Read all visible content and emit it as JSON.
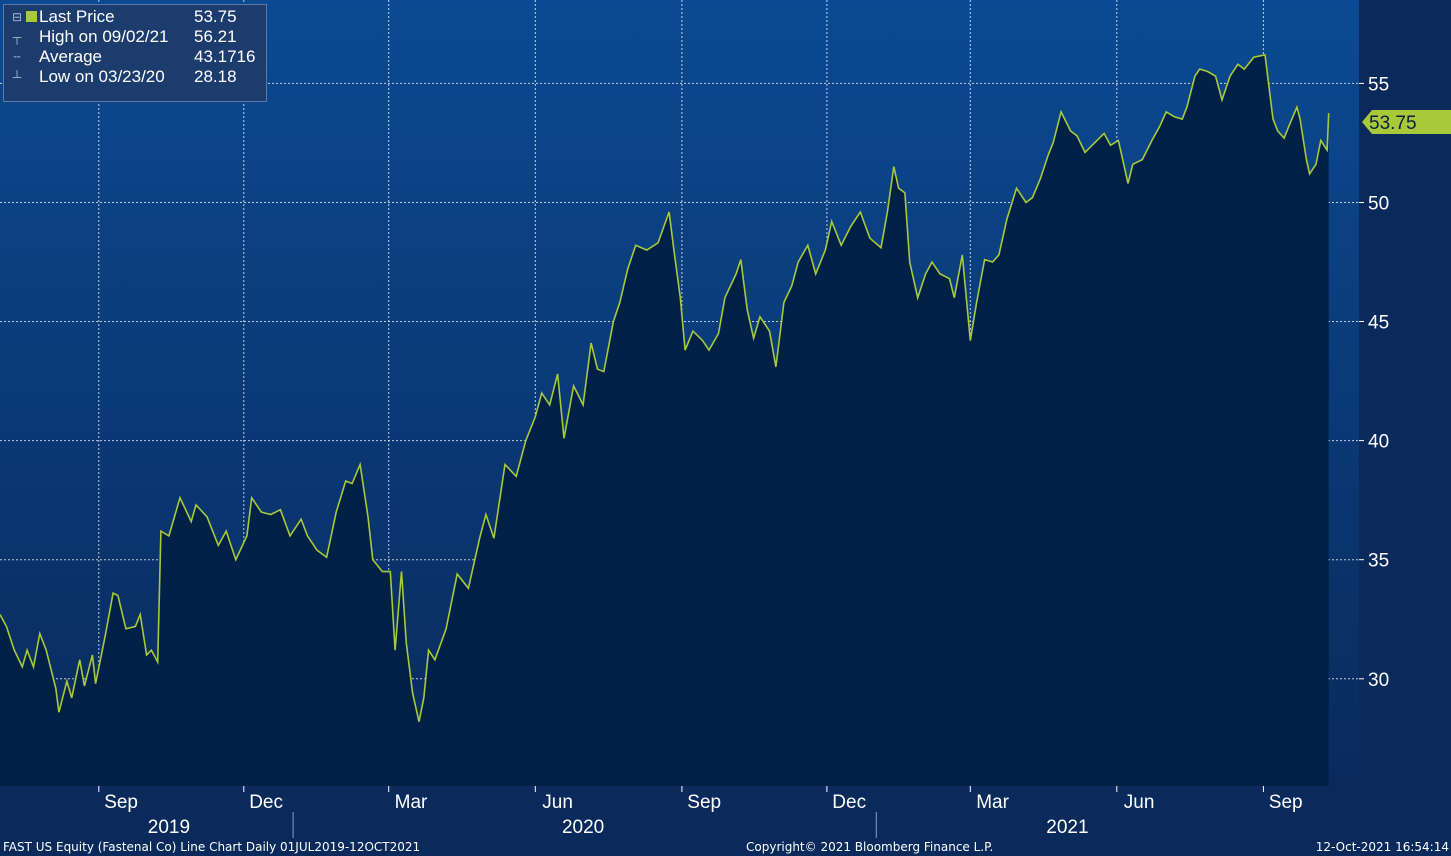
{
  "legend": {
    "last_label": "Last Price",
    "last_value": "53.75",
    "high_label": "High on 09/02/21",
    "high_value": "56.21",
    "avg_label": "Average",
    "avg_value": "43.1716",
    "low_label": "Low on 03/23/20",
    "low_value": "28.18"
  },
  "last_price_tag": "53.75",
  "footer": {
    "left": "FAST US Equity (Fastenal Co) Line Chart  Daily 01JUL2019-12OCT2021",
    "center": "Copyright© 2021 Bloomberg Finance L.P.",
    "right": "12-Oct-2021 16:54:14"
  },
  "colors": {
    "line": "#a7c93a",
    "fill": "#022147",
    "bg_top": "#0b4a92",
    "bg_bottom": "#0a2a5c"
  },
  "chart_data": {
    "type": "area",
    "ylim": [
      25.5,
      58.5
    ],
    "y_ticks": [
      30,
      35,
      40,
      45,
      50,
      55
    ],
    "x_months": [
      "Sep",
      "Dec",
      "Mar",
      "Jun",
      "Sep",
      "Dec",
      "Mar",
      "Jun",
      "Sep"
    ],
    "x_years": [
      "2019",
      "2020",
      "2021"
    ],
    "series": [
      {
        "name": "Last Price",
        "points": [
          [
            "2019-07-01",
            32.7
          ],
          [
            "2019-07-05",
            32.2
          ],
          [
            "2019-07-10",
            31.2
          ],
          [
            "2019-07-15",
            30.5
          ],
          [
            "2019-07-18",
            31.2
          ],
          [
            "2019-07-22",
            30.5
          ],
          [
            "2019-07-26",
            31.9
          ],
          [
            "2019-07-30",
            31.2
          ],
          [
            "2019-08-05",
            29.6
          ],
          [
            "2019-08-07",
            28.6
          ],
          [
            "2019-08-12",
            29.9
          ],
          [
            "2019-08-15",
            29.2
          ],
          [
            "2019-08-20",
            30.8
          ],
          [
            "2019-08-23",
            29.7
          ],
          [
            "2019-08-28",
            31.0
          ],
          [
            "2019-08-30",
            29.8
          ],
          [
            "2019-09-05",
            31.8
          ],
          [
            "2019-09-10",
            33.6
          ],
          [
            "2019-09-13",
            33.5
          ],
          [
            "2019-09-18",
            32.1
          ],
          [
            "2019-09-24",
            32.2
          ],
          [
            "2019-09-27",
            32.7
          ],
          [
            "2019-10-01",
            31.0
          ],
          [
            "2019-10-04",
            31.2
          ],
          [
            "2019-10-08",
            30.7
          ],
          [
            "2019-10-10",
            36.2
          ],
          [
            "2019-10-15",
            36.0
          ],
          [
            "2019-10-22",
            37.6
          ],
          [
            "2019-10-29",
            36.6
          ],
          [
            "2019-11-01",
            37.3
          ],
          [
            "2019-11-08",
            36.8
          ],
          [
            "2019-11-15",
            35.6
          ],
          [
            "2019-11-20",
            36.2
          ],
          [
            "2019-11-26",
            35.0
          ],
          [
            "2019-12-03",
            36.0
          ],
          [
            "2019-12-06",
            37.6
          ],
          [
            "2019-12-12",
            37.0
          ],
          [
            "2019-12-18",
            36.9
          ],
          [
            "2019-12-24",
            37.1
          ],
          [
            "2019-12-30",
            36.0
          ],
          [
            "2020-01-06",
            36.7
          ],
          [
            "2020-01-10",
            36.0
          ],
          [
            "2020-01-16",
            35.4
          ],
          [
            "2020-01-22",
            35.1
          ],
          [
            "2020-01-28",
            37.0
          ],
          [
            "2020-02-03",
            38.3
          ],
          [
            "2020-02-07",
            38.2
          ],
          [
            "2020-02-12",
            39.0
          ],
          [
            "2020-02-17",
            36.8
          ],
          [
            "2020-02-20",
            35.0
          ],
          [
            "2020-02-26",
            34.5
          ],
          [
            "2020-03-02",
            34.5
          ],
          [
            "2020-03-05",
            31.2
          ],
          [
            "2020-03-09",
            34.5
          ],
          [
            "2020-03-12",
            31.5
          ],
          [
            "2020-03-16",
            29.4
          ],
          [
            "2020-03-20",
            28.2
          ],
          [
            "2020-03-23",
            29.2
          ],
          [
            "2020-03-26",
            31.2
          ],
          [
            "2020-03-30",
            30.8
          ],
          [
            "2020-04-06",
            32.1
          ],
          [
            "2020-04-13",
            34.4
          ],
          [
            "2020-04-20",
            33.8
          ],
          [
            "2020-04-27",
            35.9
          ],
          [
            "2020-05-01",
            36.9
          ],
          [
            "2020-05-06",
            35.9
          ],
          [
            "2020-05-13",
            39.0
          ],
          [
            "2020-05-20",
            38.5
          ],
          [
            "2020-05-26",
            40.0
          ],
          [
            "2020-06-01",
            41.0
          ],
          [
            "2020-06-05",
            42.0
          ],
          [
            "2020-06-10",
            41.5
          ],
          [
            "2020-06-15",
            42.8
          ],
          [
            "2020-06-19",
            40.1
          ],
          [
            "2020-06-25",
            42.3
          ],
          [
            "2020-07-01",
            41.5
          ],
          [
            "2020-07-06",
            44.1
          ],
          [
            "2020-07-10",
            43.0
          ],
          [
            "2020-07-14",
            42.9
          ],
          [
            "2020-07-20",
            45.0
          ],
          [
            "2020-07-24",
            45.8
          ],
          [
            "2020-07-29",
            47.2
          ],
          [
            "2020-08-03",
            48.2
          ],
          [
            "2020-08-10",
            48.0
          ],
          [
            "2020-08-17",
            48.3
          ],
          [
            "2020-08-24",
            49.6
          ],
          [
            "2020-08-27",
            48.0
          ],
          [
            "2020-08-31",
            46.0
          ],
          [
            "2020-09-03",
            43.8
          ],
          [
            "2020-09-08",
            44.6
          ],
          [
            "2020-09-14",
            44.2
          ],
          [
            "2020-09-18",
            43.8
          ],
          [
            "2020-09-24",
            44.5
          ],
          [
            "2020-09-28",
            46.0
          ],
          [
            "2020-10-05",
            47.0
          ],
          [
            "2020-10-08",
            47.6
          ],
          [
            "2020-10-12",
            45.5
          ],
          [
            "2020-10-16",
            44.3
          ],
          [
            "2020-10-20",
            45.2
          ],
          [
            "2020-10-26",
            44.6
          ],
          [
            "2020-10-30",
            43.1
          ],
          [
            "2020-11-04",
            45.8
          ],
          [
            "2020-11-09",
            46.5
          ],
          [
            "2020-11-13",
            47.5
          ],
          [
            "2020-11-19",
            48.2
          ],
          [
            "2020-11-24",
            47.0
          ],
          [
            "2020-11-30",
            48.0
          ],
          [
            "2020-12-04",
            49.2
          ],
          [
            "2020-12-10",
            48.2
          ],
          [
            "2020-12-16",
            49.0
          ],
          [
            "2020-12-22",
            49.6
          ],
          [
            "2020-12-28",
            48.5
          ],
          [
            "2021-01-04",
            48.1
          ],
          [
            "2021-01-08",
            49.6
          ],
          [
            "2021-01-12",
            51.5
          ],
          [
            "2021-01-15",
            50.6
          ],
          [
            "2021-01-19",
            50.4
          ],
          [
            "2021-01-22",
            47.5
          ],
          [
            "2021-01-27",
            46.0
          ],
          [
            "2021-02-01",
            47.0
          ],
          [
            "2021-02-05",
            47.5
          ],
          [
            "2021-02-10",
            47.0
          ],
          [
            "2021-02-16",
            46.8
          ],
          [
            "2021-02-19",
            46.0
          ],
          [
            "2021-02-24",
            47.8
          ],
          [
            "2021-03-01",
            44.2
          ],
          [
            "2021-03-05",
            45.8
          ],
          [
            "2021-03-10",
            47.6
          ],
          [
            "2021-03-15",
            47.5
          ],
          [
            "2021-03-19",
            47.8
          ],
          [
            "2021-03-24",
            49.3
          ],
          [
            "2021-03-30",
            50.6
          ],
          [
            "2021-04-05",
            50.0
          ],
          [
            "2021-04-09",
            50.2
          ],
          [
            "2021-04-14",
            51.0
          ],
          [
            "2021-04-19",
            52.0
          ],
          [
            "2021-04-22",
            52.5
          ],
          [
            "2021-04-27",
            53.8
          ],
          [
            "2021-05-03",
            53.0
          ],
          [
            "2021-05-07",
            52.8
          ],
          [
            "2021-05-12",
            52.1
          ],
          [
            "2021-05-18",
            52.5
          ],
          [
            "2021-05-24",
            52.9
          ],
          [
            "2021-05-28",
            52.4
          ],
          [
            "2021-06-02",
            52.6
          ],
          [
            "2021-06-08",
            50.8
          ],
          [
            "2021-06-11",
            51.6
          ],
          [
            "2021-06-17",
            51.8
          ],
          [
            "2021-06-23",
            52.6
          ],
          [
            "2021-06-28",
            53.2
          ],
          [
            "2021-07-02",
            53.8
          ],
          [
            "2021-07-07",
            53.6
          ],
          [
            "2021-07-12",
            53.5
          ],
          [
            "2021-07-15",
            54.0
          ],
          [
            "2021-07-20",
            55.3
          ],
          [
            "2021-07-23",
            55.6
          ],
          [
            "2021-07-28",
            55.5
          ],
          [
            "2021-08-02",
            55.3
          ],
          [
            "2021-08-06",
            54.3
          ],
          [
            "2021-08-11",
            55.3
          ],
          [
            "2021-08-16",
            55.8
          ],
          [
            "2021-08-20",
            55.6
          ],
          [
            "2021-08-26",
            56.1
          ],
          [
            "2021-09-02",
            56.2
          ],
          [
            "2021-09-07",
            53.5
          ],
          [
            "2021-09-10",
            53.0
          ],
          [
            "2021-09-14",
            52.7
          ],
          [
            "2021-09-17",
            53.2
          ],
          [
            "2021-09-22",
            54.0
          ],
          [
            "2021-09-24",
            53.5
          ],
          [
            "2021-09-28",
            51.8
          ],
          [
            "2021-09-30",
            51.2
          ],
          [
            "2021-10-04",
            51.6
          ],
          [
            "2021-10-07",
            52.6
          ],
          [
            "2021-10-11",
            52.2
          ],
          [
            "2021-10-12",
            53.75
          ]
        ]
      }
    ]
  }
}
